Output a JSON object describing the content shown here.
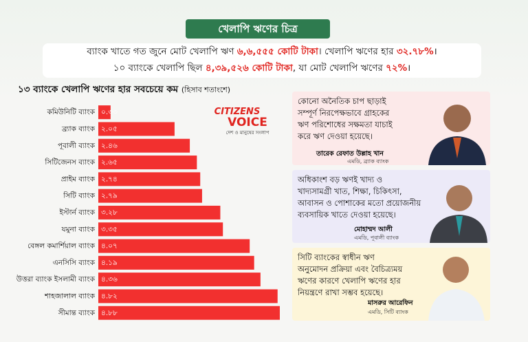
{
  "banner": "খেলাপি ঋণের চিত্র",
  "header": {
    "line1": [
      "ব্যাংক খাতে গত জুনে মোট খেলাপি ঋণ ",
      "৬,৬,৫৫৫ কোটি টাকা",
      "। খেলাপি ঋণের হার ",
      "৩২.৭৮%",
      "।"
    ],
    "line2": [
      "১০ ব্যাংকে খেলাপি ছিল ",
      "৪,৩৯,৫২৬ কোটি টাকা",
      ", যা মোট খেলাপি ঋণের ",
      "৭২%",
      "।"
    ]
  },
  "logo": {
    "name": "CITIZENS",
    "name2": "VOICE",
    "tagline": "দেশ ও মানুষের সংলাপ"
  },
  "chart_data": {
    "type": "bar",
    "orientation": "horizontal",
    "title": "১৩ ব্যাংকে খেলাপি ঋণের হার সবচেয়ে কম",
    "subtitle": "(হিসাব শতাংশে)",
    "color": "#f2302f",
    "categories": [
      "কমিউনিটি ব্যাংক",
      "ব্র্যাক ব্যাংক",
      "পূবালী ব্যাংক",
      "সিটিজেনস ব্যাংক",
      "প্রাইম ব্যাংক",
      "সিটি ব্যাংক",
      "ইস্টার্ন ব্যাংক",
      "যমুনা ব্যাংক",
      "বেঙ্গল কমার্শিয়াল ব্যাংক",
      "এনসিসি ব্যাংক",
      "উত্তরা ব্যাংক ইসলামী ব্যাংক",
      "শাহজালাল ব্যাংক",
      "সীমান্ত ব্যাংক"
    ],
    "values": [
      0.33,
      2.05,
      2.46,
      2.65,
      2.74,
      2.79,
      3.28,
      3.35,
      4.07,
      4.19,
      4.36,
      4.82,
      4.88
    ],
    "value_labels": [
      "০.৩৩",
      "২.০৫",
      "২.৪৬",
      "২.৬৫",
      "২.৭৪",
      "২.৭৯",
      "৩.২৮",
      "৩.৩৫",
      "৪.০৭",
      "৪.১৯",
      "৪.৩৬",
      "৪.৮২",
      "৪.৮৮"
    ]
  },
  "quotes": [
    {
      "lines": [
        "কোনো অনৈতিক চাপ ছাড়াই",
        "সম্পূর্ণ নিরপেক্ষভাবে গ্রাহকের",
        "ঋণ পরিশোধের সক্ষমতা যাচাই",
        "করে ঋণ দেওয়া হয়েছে।"
      ],
      "name": "তারেক রেফাত উল্লাহ খান",
      "role": "এমডি, ব্র্যাক ব্যাংক"
    },
    {
      "lines": [
        "অধিকাংশ বড় ঋণই খাদ্য ও",
        "খাদ্যসামগ্রী খাত, শিক্ষা, চিকিৎসা,",
        "আবাসন ও পোশাকের মতো প্রয়োজনীয়",
        "ব্যবসায়িক খাতে দেওয়া হয়েছে।"
      ],
      "name": "মোহাম্মদ আলী",
      "role": "এমডি, পূবালী ব্যাংক"
    },
    {
      "lines": [
        "সিটি ব্যাংকের স্বাধীন ঋণ",
        "অনুমোদন প্রক্রিয়া এবং বৈচিত্র্যময়",
        "ঋণের কারণে খেলাপি ঋণের হার",
        "নিয়ন্ত্রণে রাখা সম্ভব হয়েছে।"
      ],
      "name": "মাসরুর আরেফিন",
      "role": "এমডি, সিটি ব্যাংক"
    }
  ]
}
